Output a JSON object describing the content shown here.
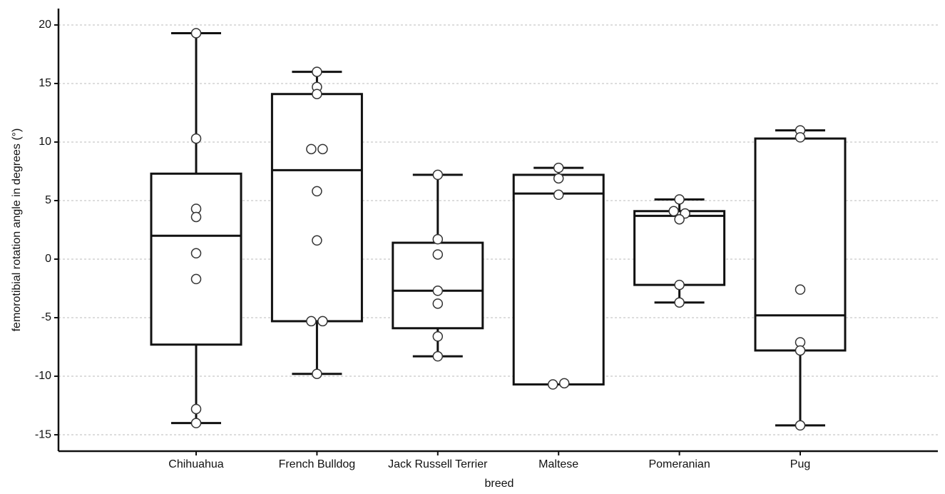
{
  "chart_data": {
    "type": "boxplot",
    "x_label": "breed",
    "y_label": "femorotibial rotation angle in degrees (°)",
    "categories": [
      "Chihuahua",
      "French Bulldog",
      "Jack Russell Terrier",
      "Maltese",
      "Pomeranian",
      "Pug"
    ],
    "boxes": [
      {
        "whisker_low": -14.0,
        "q1": -7.3,
        "median": 2.0,
        "q3": 7.3,
        "whisker_high": 19.3,
        "points": [
          19.3,
          10.3,
          4.3,
          3.6,
          0.5,
          -1.7,
          -12.8,
          -14.0
        ]
      },
      {
        "whisker_low": -9.8,
        "q1": -5.3,
        "median": 7.6,
        "q3": 14.1,
        "whisker_high": 16.0,
        "points": [
          16.0,
          14.7,
          14.1,
          9.4,
          9.4,
          5.8,
          1.6,
          -5.3,
          -5.3,
          -9.8
        ]
      },
      {
        "whisker_low": -8.3,
        "q1": -5.9,
        "median": -2.7,
        "q3": 1.4,
        "whisker_high": 7.2,
        "points": [
          7.2,
          1.7,
          0.4,
          -2.7,
          -3.8,
          -6.6,
          -8.3
        ]
      },
      {
        "whisker_low": -10.7,
        "q1": -10.7,
        "median": 5.6,
        "q3": 7.2,
        "whisker_high": 7.8,
        "points": [
          7.8,
          6.9,
          5.5,
          -10.7,
          -10.6
        ]
      },
      {
        "whisker_low": -3.7,
        "q1": -2.2,
        "median": 3.7,
        "q3": 4.1,
        "whisker_high": 5.1,
        "points": [
          5.1,
          4.1,
          3.9,
          3.4,
          -2.2,
          -3.7
        ]
      },
      {
        "whisker_low": -14.2,
        "q1": -7.8,
        "median": -4.8,
        "q3": 10.3,
        "whisker_high": 11.0,
        "points": [
          11.0,
          10.4,
          -2.6,
          -7.1,
          -7.8,
          -14.2
        ]
      }
    ],
    "color": "#111111",
    "ylim": [
      -16.4,
      21.4
    ],
    "yticks": [
      -15,
      -10,
      -5,
      0,
      5,
      10,
      15,
      20
    ],
    "grid": true
  }
}
